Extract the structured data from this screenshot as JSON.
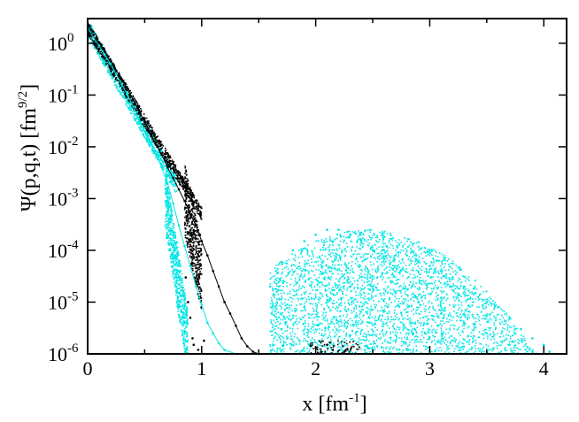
{
  "chart_data": {
    "type": "scatter",
    "title": "",
    "xlabel": {
      "main": "x [fm",
      "sup": "-1",
      "close": "]"
    },
    "ylabel": {
      "main": "Ψ(p,q,t) [fm",
      "sup": "9/2",
      "close": "]"
    },
    "xlim": [
      0,
      4.2
    ],
    "ylim": [
      1e-06,
      3
    ],
    "yscale": "log",
    "grid": false,
    "legend": "none",
    "x_ticks": [
      {
        "value": 0,
        "label": "0"
      },
      {
        "value": 1,
        "label": "1"
      },
      {
        "value": 2,
        "label": "2"
      },
      {
        "value": 3,
        "label": "3"
      },
      {
        "value": 4,
        "label": "4"
      }
    ],
    "y_ticks": [
      {
        "value": 1e-06,
        "base": "10",
        "exp": "-6"
      },
      {
        "value": 1e-05,
        "base": "10",
        "exp": "-5"
      },
      {
        "value": 0.0001,
        "base": "10",
        "exp": "-4"
      },
      {
        "value": 0.001,
        "base": "10",
        "exp": "-3"
      },
      {
        "value": 0.01,
        "base": "10",
        "exp": "-2"
      },
      {
        "value": 0.1,
        "base": "10",
        "exp": "-1"
      },
      {
        "value": 1,
        "base": "10",
        "exp": "0"
      }
    ],
    "colors": {
      "black_series": "#000000",
      "cyan_series": "#00e5e5"
    },
    "series": [
      {
        "color": "black",
        "marker": "dot",
        "points": [
          [
            0.0,
            2.0
          ],
          [
            0.05,
            1.4
          ],
          [
            0.1,
            1.0
          ],
          [
            0.15,
            0.7
          ],
          [
            0.2,
            0.45
          ],
          [
            0.25,
            0.3
          ],
          [
            0.3,
            0.2
          ],
          [
            0.35,
            0.13
          ],
          [
            0.4,
            0.08
          ],
          [
            0.45,
            0.05
          ],
          [
            0.5,
            0.03
          ],
          [
            0.55,
            0.018
          ],
          [
            0.6,
            0.011
          ],
          [
            0.65,
            0.007
          ],
          [
            0.7,
            0.004
          ],
          [
            0.75,
            0.0025
          ],
          [
            0.8,
            0.0015
          ],
          [
            0.85,
            0.0009
          ],
          [
            0.9,
            0.0005
          ],
          [
            0.95,
            0.0003
          ],
          [
            1.0,
            0.00015
          ],
          [
            1.05,
            8e-05
          ],
          [
            1.1,
            4e-05
          ],
          [
            1.15,
            2e-05
          ],
          [
            1.2,
            1e-05
          ],
          [
            1.25,
            6e-06
          ],
          [
            1.3,
            3.5e-06
          ],
          [
            1.35,
            2e-06
          ],
          [
            1.4,
            1.4e-06
          ],
          [
            1.45,
            1.1e-06
          ],
          [
            1.5,
            1e-06
          ],
          [
            0.86,
            3e-05
          ],
          [
            0.88,
            1e-05
          ],
          [
            0.9,
            5e-06
          ],
          [
            0.92,
            2e-06
          ],
          [
            0.93,
            1.5e-06
          ],
          [
            0.97,
            1.2e-06
          ],
          [
            1.02,
            1.8e-06
          ],
          [
            2.0,
            1.3e-06
          ],
          [
            2.05,
            1.1e-06
          ],
          [
            2.1,
            1.5e-06
          ],
          [
            2.15,
            1.2e-06
          ],
          [
            2.25,
            1.1e-06
          ],
          [
            2.35,
            1e-06
          ]
        ]
      },
      {
        "color": "cyan",
        "marker": "dot",
        "points": [
          [
            0.0,
            2.0
          ],
          [
            0.05,
            1.3
          ],
          [
            0.1,
            0.9
          ],
          [
            0.15,
            0.6
          ],
          [
            0.2,
            0.4
          ],
          [
            0.25,
            0.25
          ],
          [
            0.3,
            0.16
          ],
          [
            0.35,
            0.1
          ],
          [
            0.4,
            0.06
          ],
          [
            0.45,
            0.035
          ],
          [
            0.5,
            0.02
          ],
          [
            0.55,
            0.012
          ],
          [
            0.6,
            0.007
          ],
          [
            0.65,
            0.004
          ],
          [
            0.7,
            0.002
          ],
          [
            0.75,
            0.0008
          ],
          [
            0.8,
            0.0003
          ],
          [
            0.85,
            0.00012
          ],
          [
            0.9,
            5e-05
          ],
          [
            0.95,
            2e-05
          ],
          [
            1.0,
            9e-06
          ],
          [
            1.05,
            4e-06
          ],
          [
            1.1,
            2.5e-06
          ],
          [
            1.15,
            1.6e-06
          ],
          [
            1.2,
            1.2e-06
          ],
          [
            1.3,
            1e-06
          ],
          [
            0.72,
            0.0001
          ],
          [
            0.75,
            4e-05
          ],
          [
            0.8,
            1.5e-05
          ],
          [
            0.82,
            7e-06
          ],
          [
            1.6,
            2e-05
          ],
          [
            1.7,
            6e-05
          ],
          [
            1.8,
            0.0001
          ],
          [
            1.9,
            0.00015
          ],
          [
            2.0,
            0.0002
          ],
          [
            2.1,
            0.00025
          ],
          [
            2.2,
            0.00025
          ],
          [
            2.3,
            0.0002
          ],
          [
            2.4,
            0.00015
          ],
          [
            2.5,
            0.0001
          ],
          [
            2.6,
            0.0001
          ],
          [
            2.7,
            8e-05
          ],
          [
            2.8,
            8e-05
          ],
          [
            2.9,
            6e-05
          ],
          [
            3.0,
            5e-05
          ],
          [
            3.1,
            4e-05
          ],
          [
            3.2,
            3e-05
          ],
          [
            3.3,
            2e-05
          ],
          [
            3.4,
            1.5e-05
          ],
          [
            3.5,
            1e-05
          ],
          [
            3.6,
            8e-06
          ],
          [
            3.7,
            5e-06
          ],
          [
            3.8,
            3e-06
          ],
          [
            3.9,
            2e-06
          ],
          [
            4.0,
            1.5e-06
          ],
          [
            4.05,
            1.1e-06
          ],
          [
            1.7,
            3e-06
          ],
          [
            1.9,
            8e-06
          ],
          [
            2.1,
            1e-05
          ],
          [
            2.3,
            2e-05
          ],
          [
            2.5,
            2e-05
          ],
          [
            2.7,
            1.5e-05
          ],
          [
            2.9,
            1e-05
          ],
          [
            3.1,
            6e-06
          ],
          [
            3.3,
            4e-06
          ],
          [
            3.5,
            2.5e-06
          ],
          [
            3.7,
            1.5e-06
          ],
          [
            3.9,
            1.1e-06
          ]
        ]
      }
    ]
  }
}
